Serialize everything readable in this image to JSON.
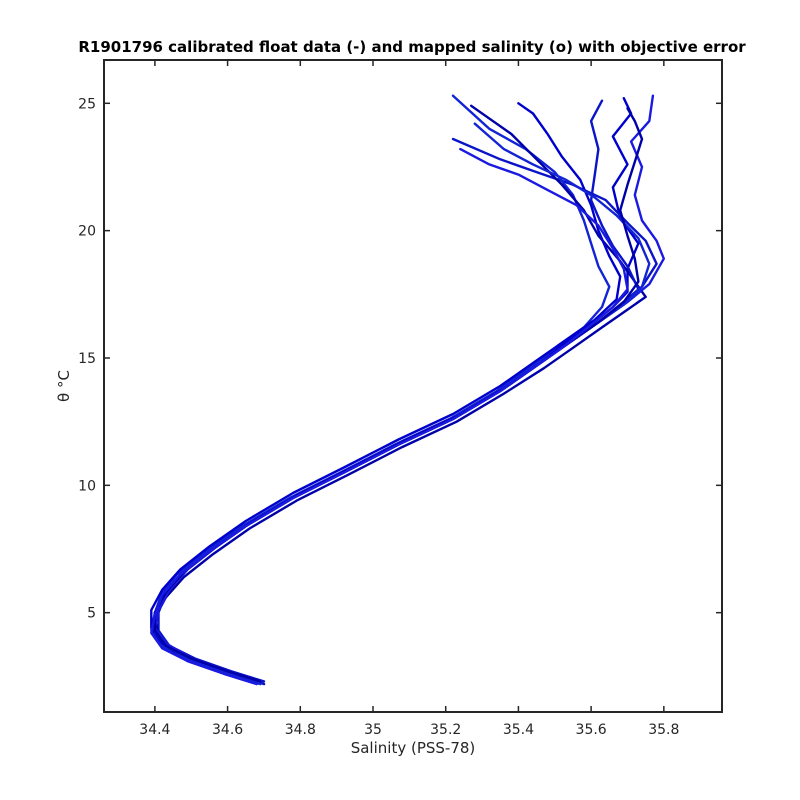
{
  "chart_data": {
    "type": "line",
    "title": "R1901796 calibrated float data (-) and mapped salinity (o) with objective error",
    "xlabel": "Salinity (PSS-78)",
    "ylabel": "θ °C",
    "xlim": [
      34.26,
      35.96
    ],
    "ylim": [
      1.1,
      26.7
    ],
    "xticks": [
      34.4,
      34.6,
      34.8,
      35,
      35.2,
      35.4,
      35.6,
      35.8
    ],
    "xtick_labels": [
      "34.4",
      "34.6",
      "34.8",
      "35",
      "35.2",
      "35.4",
      "35.6",
      "35.8"
    ],
    "yticks": [
      5,
      10,
      15,
      20,
      25
    ],
    "ytick_labels": [
      "5",
      "10",
      "15",
      "20",
      "25"
    ],
    "grid": false,
    "line_colors": [
      "#0000cc",
      "#0a14c8",
      "#1224d4",
      "#0000a8",
      "#1a1ae0"
    ],
    "series": [
      {
        "values": [
          [
            34.69,
            2.2
          ],
          [
            34.6,
            2.6
          ],
          [
            34.5,
            3.1
          ],
          [
            34.43,
            3.6
          ],
          [
            34.4,
            4.2
          ],
          [
            34.4,
            4.9
          ],
          [
            34.42,
            5.7
          ],
          [
            34.47,
            6.5
          ],
          [
            34.55,
            7.4
          ],
          [
            34.65,
            8.4
          ],
          [
            34.78,
            9.5
          ],
          [
            34.92,
            10.5
          ],
          [
            35.07,
            11.6
          ],
          [
            35.22,
            12.6
          ],
          [
            35.35,
            13.7
          ],
          [
            35.45,
            14.7
          ],
          [
            35.52,
            15.5
          ],
          [
            35.6,
            16.3
          ],
          [
            35.66,
            17.0
          ],
          [
            35.7,
            17.6
          ],
          [
            35.7,
            18.5
          ],
          [
            35.73,
            19.5
          ],
          [
            35.68,
            20.5
          ],
          [
            35.66,
            21.7
          ],
          [
            35.7,
            22.6
          ],
          [
            35.66,
            23.7
          ],
          [
            35.71,
            24.6
          ],
          [
            35.69,
            25.2
          ]
        ]
      },
      {
        "values": [
          [
            34.7,
            2.3
          ],
          [
            34.61,
            2.7
          ],
          [
            34.51,
            3.2
          ],
          [
            34.44,
            3.7
          ],
          [
            34.41,
            4.3
          ],
          [
            34.41,
            5.0
          ],
          [
            34.43,
            5.8
          ],
          [
            34.48,
            6.6
          ],
          [
            34.56,
            7.5
          ],
          [
            34.66,
            8.5
          ],
          [
            34.79,
            9.6
          ],
          [
            34.93,
            10.6
          ],
          [
            35.08,
            11.7
          ],
          [
            35.23,
            12.7
          ],
          [
            35.36,
            13.8
          ],
          [
            35.46,
            14.8
          ],
          [
            35.54,
            15.6
          ],
          [
            35.62,
            16.4
          ],
          [
            35.68,
            17.1
          ],
          [
            35.74,
            17.8
          ],
          [
            35.78,
            18.7
          ],
          [
            35.75,
            19.6
          ],
          [
            35.7,
            20.3
          ],
          [
            35.64,
            21.2
          ],
          [
            35.55,
            21.8
          ],
          [
            35.45,
            22.3
          ],
          [
            35.35,
            22.8
          ],
          [
            35.22,
            23.6
          ]
        ]
      },
      {
        "values": [
          [
            34.68,
            2.2
          ],
          [
            34.59,
            2.6
          ],
          [
            34.49,
            3.1
          ],
          [
            34.42,
            3.7
          ],
          [
            34.39,
            4.3
          ],
          [
            34.4,
            5.0
          ],
          [
            34.42,
            5.8
          ],
          [
            34.46,
            6.5
          ],
          [
            34.54,
            7.4
          ],
          [
            34.64,
            8.4
          ],
          [
            34.77,
            9.5
          ],
          [
            34.91,
            10.5
          ],
          [
            35.06,
            11.6
          ],
          [
            35.21,
            12.6
          ],
          [
            35.34,
            13.7
          ],
          [
            35.44,
            14.7
          ],
          [
            35.51,
            15.5
          ],
          [
            35.58,
            16.2
          ],
          [
            35.63,
            17.0
          ],
          [
            35.65,
            17.8
          ],
          [
            35.62,
            18.6
          ],
          [
            35.6,
            19.5
          ],
          [
            35.58,
            20.4
          ],
          [
            35.55,
            21.4
          ],
          [
            35.5,
            22.3
          ],
          [
            35.42,
            23.2
          ],
          [
            35.32,
            24.0
          ],
          [
            35.22,
            25.3
          ]
        ]
      },
      {
        "values": [
          [
            34.7,
            2.2
          ],
          [
            34.62,
            2.6
          ],
          [
            34.52,
            3.0
          ],
          [
            34.45,
            3.5
          ],
          [
            34.41,
            4.1
          ],
          [
            34.4,
            4.8
          ],
          [
            34.43,
            5.6
          ],
          [
            34.48,
            6.4
          ],
          [
            34.56,
            7.3
          ],
          [
            34.66,
            8.3
          ],
          [
            34.79,
            9.4
          ],
          [
            34.93,
            10.4
          ],
          [
            35.08,
            11.5
          ],
          [
            35.23,
            12.5
          ],
          [
            35.36,
            13.6
          ],
          [
            35.47,
            14.6
          ],
          [
            35.55,
            15.4
          ],
          [
            35.63,
            16.2
          ],
          [
            35.7,
            16.9
          ],
          [
            35.75,
            17.4
          ],
          [
            35.72,
            18.0
          ],
          [
            35.68,
            18.8
          ],
          [
            35.62,
            19.8
          ],
          [
            35.58,
            20.8
          ],
          [
            35.52,
            21.8
          ],
          [
            35.45,
            22.8
          ],
          [
            35.38,
            23.8
          ],
          [
            35.27,
            24.9
          ]
        ]
      },
      {
        "values": [
          [
            34.69,
            2.3
          ],
          [
            34.6,
            2.7
          ],
          [
            34.5,
            3.2
          ],
          [
            34.43,
            3.8
          ],
          [
            34.4,
            4.4
          ],
          [
            34.41,
            5.1
          ],
          [
            34.44,
            5.9
          ],
          [
            34.49,
            6.7
          ],
          [
            34.57,
            7.6
          ],
          [
            34.67,
            8.6
          ],
          [
            34.8,
            9.7
          ],
          [
            34.94,
            10.7
          ],
          [
            35.09,
            11.8
          ],
          [
            35.24,
            12.8
          ],
          [
            35.37,
            13.9
          ],
          [
            35.47,
            14.9
          ],
          [
            35.55,
            15.7
          ],
          [
            35.63,
            16.5
          ],
          [
            35.7,
            17.2
          ],
          [
            35.76,
            17.9
          ],
          [
            35.8,
            18.9
          ],
          [
            35.78,
            19.6
          ],
          [
            35.74,
            20.4
          ],
          [
            35.72,
            21.4
          ],
          [
            35.74,
            22.5
          ],
          [
            35.71,
            23.5
          ],
          [
            35.76,
            24.3
          ],
          [
            35.77,
            25.3
          ]
        ]
      },
      {
        "values": [
          [
            34.68,
            2.3
          ],
          [
            34.59,
            2.7
          ],
          [
            34.49,
            3.2
          ],
          [
            34.42,
            3.8
          ],
          [
            34.39,
            4.4
          ],
          [
            34.39,
            5.1
          ],
          [
            34.42,
            5.9
          ],
          [
            34.47,
            6.7
          ],
          [
            34.55,
            7.6
          ],
          [
            34.65,
            8.6
          ],
          [
            34.78,
            9.7
          ],
          [
            34.92,
            10.7
          ],
          [
            35.07,
            11.8
          ],
          [
            35.22,
            12.8
          ],
          [
            35.35,
            13.9
          ],
          [
            35.45,
            14.9
          ],
          [
            35.53,
            15.7
          ],
          [
            35.61,
            16.5
          ],
          [
            35.67,
            17.3
          ],
          [
            35.68,
            18.2
          ],
          [
            35.65,
            19.0
          ],
          [
            35.62,
            20.0
          ],
          [
            35.6,
            21.0
          ],
          [
            35.57,
            22.0
          ],
          [
            35.52,
            22.9
          ],
          [
            35.48,
            23.8
          ],
          [
            35.44,
            24.6
          ],
          [
            35.4,
            25.0
          ]
        ]
      },
      {
        "values": [
          [
            34.7,
            2.2
          ],
          [
            34.61,
            2.6
          ],
          [
            34.51,
            3.1
          ],
          [
            34.44,
            3.6
          ],
          [
            34.4,
            4.2
          ],
          [
            34.4,
            4.9
          ],
          [
            34.42,
            5.7
          ],
          [
            34.47,
            6.5
          ],
          [
            34.55,
            7.4
          ],
          [
            34.65,
            8.4
          ],
          [
            34.78,
            9.5
          ],
          [
            34.92,
            10.5
          ],
          [
            35.07,
            11.6
          ],
          [
            35.22,
            12.6
          ],
          [
            35.35,
            13.7
          ],
          [
            35.45,
            14.7
          ],
          [
            35.53,
            15.5
          ],
          [
            35.61,
            16.3
          ],
          [
            35.68,
            17.0
          ],
          [
            35.73,
            17.7
          ],
          [
            35.7,
            18.6
          ],
          [
            35.66,
            19.4
          ],
          [
            35.63,
            20.2
          ],
          [
            35.6,
            21.2
          ],
          [
            35.61,
            22.2
          ],
          [
            35.62,
            23.2
          ],
          [
            35.6,
            24.3
          ],
          [
            35.63,
            25.1
          ]
        ]
      },
      {
        "values": [
          [
            34.69,
            2.2
          ],
          [
            34.6,
            2.6
          ],
          [
            34.5,
            3.1
          ],
          [
            34.43,
            3.7
          ],
          [
            34.4,
            4.3
          ],
          [
            34.4,
            5.0
          ],
          [
            34.43,
            5.8
          ],
          [
            34.48,
            6.6
          ],
          [
            34.56,
            7.5
          ],
          [
            34.66,
            8.5
          ],
          [
            34.79,
            9.6
          ],
          [
            34.93,
            10.6
          ],
          [
            35.08,
            11.7
          ],
          [
            35.23,
            12.7
          ],
          [
            35.36,
            13.8
          ],
          [
            35.46,
            14.8
          ],
          [
            35.54,
            15.6
          ],
          [
            35.62,
            16.4
          ],
          [
            35.69,
            17.1
          ],
          [
            35.74,
            17.8
          ],
          [
            35.76,
            18.7
          ],
          [
            35.73,
            19.7
          ],
          [
            35.67,
            20.6
          ],
          [
            35.61,
            21.3
          ],
          [
            35.53,
            22.0
          ],
          [
            35.44,
            22.6
          ],
          [
            35.36,
            23.2
          ],
          [
            35.28,
            24.2
          ]
        ]
      },
      {
        "values": [
          [
            34.69,
            2.3
          ],
          [
            34.6,
            2.7
          ],
          [
            34.5,
            3.2
          ],
          [
            34.43,
            3.7
          ],
          [
            34.4,
            4.3
          ],
          [
            34.4,
            5.0
          ],
          [
            34.43,
            5.8
          ],
          [
            34.48,
            6.6
          ],
          [
            34.56,
            7.5
          ],
          [
            34.66,
            8.5
          ],
          [
            34.79,
            9.6
          ],
          [
            34.93,
            10.6
          ],
          [
            35.08,
            11.7
          ],
          [
            35.23,
            12.7
          ],
          [
            35.36,
            13.8
          ],
          [
            35.46,
            14.8
          ],
          [
            35.54,
            15.6
          ],
          [
            35.62,
            16.4
          ],
          [
            35.69,
            17.2
          ],
          [
            35.73,
            18.0
          ],
          [
            35.72,
            18.9
          ],
          [
            35.7,
            19.8
          ],
          [
            35.68,
            20.8
          ],
          [
            35.7,
            21.8
          ],
          [
            35.72,
            22.7
          ],
          [
            35.74,
            23.6
          ],
          [
            35.72,
            24.3
          ],
          [
            35.7,
            24.8
          ]
        ]
      },
      {
        "values": [
          [
            34.68,
            2.2
          ],
          [
            34.59,
            2.6
          ],
          [
            34.49,
            3.1
          ],
          [
            34.42,
            3.6
          ],
          [
            34.39,
            4.2
          ],
          [
            34.4,
            4.9
          ],
          [
            34.42,
            5.7
          ],
          [
            34.47,
            6.5
          ],
          [
            34.55,
            7.4
          ],
          [
            34.65,
            8.4
          ],
          [
            34.78,
            9.5
          ],
          [
            34.92,
            10.5
          ],
          [
            35.07,
            11.6
          ],
          [
            35.22,
            12.6
          ],
          [
            35.35,
            13.7
          ],
          [
            35.45,
            14.7
          ],
          [
            35.53,
            15.5
          ],
          [
            35.6,
            16.3
          ],
          [
            35.66,
            17.0
          ],
          [
            35.7,
            17.7
          ],
          [
            35.69,
            18.5
          ],
          [
            35.66,
            19.3
          ],
          [
            35.62,
            20.2
          ],
          [
            35.56,
            21.0
          ],
          [
            35.48,
            21.6
          ],
          [
            35.4,
            22.2
          ],
          [
            35.32,
            22.6
          ],
          [
            35.24,
            23.2
          ]
        ]
      }
    ]
  }
}
